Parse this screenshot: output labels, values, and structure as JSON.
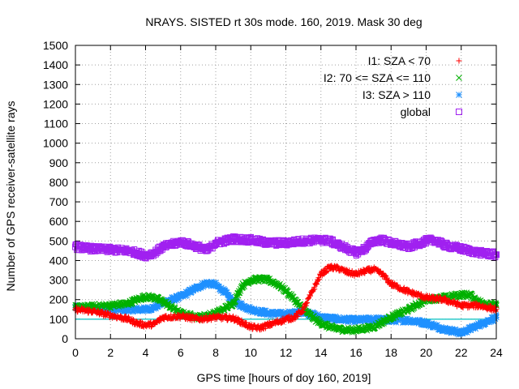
{
  "chart_data": {
    "type": "scatter",
    "title": "NRAYS. SISTED rt 30s mode. 160, 2019. Mask 30 deg",
    "xlabel": "GPS time [hours of doy 160, 2019]",
    "ylabel": "Number of GPS receiver-satellite rays",
    "xlim": [
      0,
      24
    ],
    "ylim": [
      0,
      1500
    ],
    "xticks": [
      "0",
      "2",
      "4",
      "6",
      "8",
      "10",
      "12",
      "14",
      "16",
      "18",
      "20",
      "22",
      "24"
    ],
    "yticks": [
      "0",
      "100",
      "200",
      "300",
      "400",
      "500",
      "600",
      "700",
      "800",
      "900",
      "1000",
      "1100",
      "1200",
      "1300",
      "1400",
      "1500"
    ],
    "grid": true,
    "legend_position": "top-right",
    "reference_line": {
      "value": 100,
      "color": "#00c0c0"
    },
    "series": [
      {
        "name": "I1: SZA < 70",
        "marker": "+",
        "color": "#ff0000",
        "x": [
          0,
          1,
          2,
          3,
          3.5,
          4,
          4.5,
          5,
          6,
          7,
          8,
          9,
          10,
          10.5,
          11,
          12,
          12.5,
          13,
          13.5,
          14,
          14.5,
          15,
          15.5,
          16,
          16.5,
          17,
          17.5,
          18,
          19,
          20,
          21,
          22,
          23,
          24
        ],
        "y": [
          150,
          140,
          120,
          100,
          80,
          70,
          75,
          110,
          115,
          100,
          110,
          105,
          60,
          55,
          70,
          100,
          110,
          150,
          240,
          330,
          365,
          360,
          340,
          330,
          345,
          355,
          330,
          280,
          240,
          210,
          200,
          170,
          170,
          150
        ]
      },
      {
        "name": "I2: 70 <= SZA <= 110",
        "marker": "x",
        "color": "#00b000",
        "x": [
          0,
          1,
          2,
          3,
          3.5,
          4,
          4.5,
          5,
          5.5,
          6,
          7,
          8,
          9,
          9.5,
          10,
          10.5,
          11,
          11.5,
          12,
          12.5,
          13,
          13.5,
          14,
          14.5,
          15,
          15.5,
          16,
          17,
          18,
          19,
          20,
          21,
          22,
          22.5,
          23,
          24
        ],
        "y": [
          160,
          165,
          170,
          180,
          200,
          215,
          210,
          190,
          160,
          130,
          110,
          130,
          180,
          270,
          300,
          305,
          300,
          280,
          245,
          200,
          150,
          110,
          80,
          60,
          50,
          45,
          45,
          60,
          110,
          150,
          200,
          210,
          225,
          225,
          190,
          170
        ]
      },
      {
        "name": "I3: SZA > 110",
        "marker": "*",
        "color": "#1e90ff",
        "x": [
          0,
          1,
          2,
          3,
          4,
          4.5,
          5,
          5.5,
          6,
          6.5,
          7,
          7.5,
          8,
          8.5,
          9,
          10,
          11,
          12,
          13,
          14,
          15,
          16,
          17,
          18,
          19,
          20,
          21,
          22,
          23,
          24
        ],
        "y": [
          160,
          155,
          150,
          150,
          150,
          160,
          185,
          200,
          215,
          240,
          265,
          285,
          275,
          240,
          190,
          150,
          130,
          125,
          140,
          110,
          100,
          95,
          100,
          95,
          95,
          80,
          50,
          30,
          70,
          110
        ]
      },
      {
        "name": "global",
        "marker": "square",
        "color": "#a020f0",
        "x": [
          0,
          1,
          2,
          3,
          3.5,
          4,
          4.5,
          5,
          6,
          7,
          7.5,
          8,
          9,
          10,
          11,
          12,
          13,
          14,
          14.5,
          15,
          15.5,
          16,
          16.5,
          17,
          17.5,
          18,
          19,
          20,
          20.5,
          21,
          22,
          23,
          24
        ],
        "y": [
          470,
          460,
          455,
          450,
          440,
          425,
          440,
          470,
          495,
          470,
          450,
          490,
          510,
          505,
          490,
          490,
          500,
          505,
          500,
          480,
          460,
          440,
          460,
          500,
          505,
          490,
          470,
          500,
          505,
          480,
          460,
          440,
          430
        ]
      }
    ]
  }
}
